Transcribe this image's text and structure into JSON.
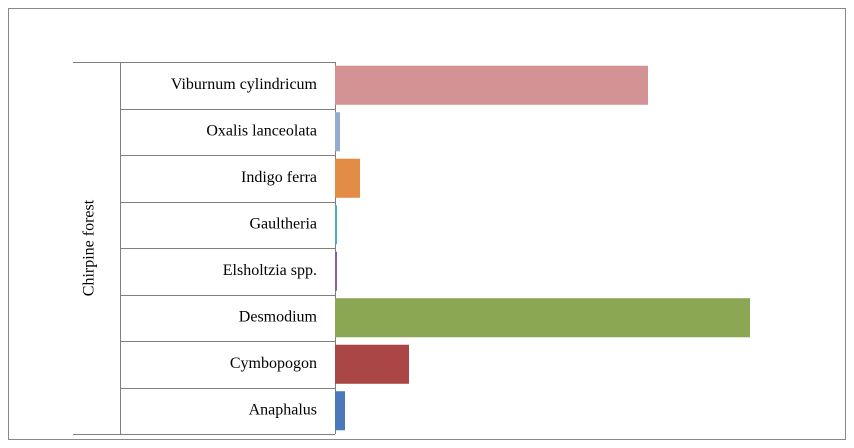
{
  "chart_data": {
    "type": "bar",
    "orientation": "horizontal",
    "group": "Chirpine forest",
    "categories": [
      "Viburnum cylindricum",
      "Oxalis lanceolata",
      "Indigo ferra",
      "Gaultheria",
      "Elsholtzia spp.",
      "Desmodium",
      "Cymbopogon",
      "Anaphalus"
    ],
    "values": [
      313,
      5,
      25,
      2,
      2,
      415,
      74,
      10
    ],
    "colors": [
      "#d39293",
      "#95acd2",
      "#e38c45",
      "#4bacc6",
      "#8064a2",
      "#8ba753",
      "#ab4646",
      "#4a78b8"
    ],
    "xlim": [
      0,
      450
    ]
  }
}
